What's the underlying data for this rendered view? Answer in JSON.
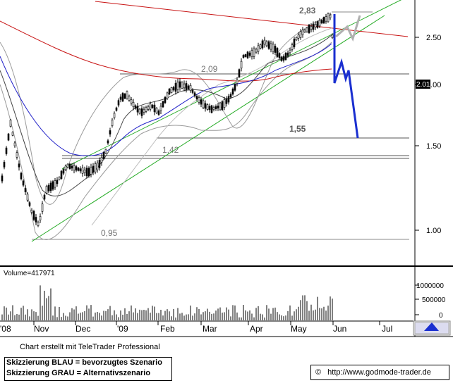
{
  "chart_data": {
    "type": "candlestick",
    "price_axis": {
      "ticks": [
        "2.50",
        "2.00",
        "1.50",
        "1.00"
      ],
      "ylim": [
        0.85,
        3.0
      ],
      "last_price": "2.01"
    },
    "time_axis": {
      "labels": [
        "'08",
        "Nov",
        "Dec",
        "'09",
        "Feb",
        "Mar",
        "Apr",
        "May",
        "Jun",
        "Jul"
      ]
    },
    "annotations": {
      "high": "2,83",
      "level_209": "2,09",
      "level_155": "1,55",
      "level_142": "1,42",
      "level_095": "0,95"
    },
    "volume": {
      "label": "Volume=417971",
      "ticks": [
        "1000000",
        "500000",
        "0"
      ]
    }
  },
  "footer": {
    "credit": "Chart erstellt mit TeleTrader Professional",
    "legend_blue": "Skizzierung BLAU = bevorzugtes Szenario",
    "legend_grey": "Skizzierung GRAU = Alternativszenario",
    "copyright_symbol": "©",
    "url": "http://www.godmode-trader.de"
  },
  "colors": {
    "scenario_blue": "#1a2fd0",
    "scenario_grey": "#b0b0b0",
    "trend_green": "#22aa22",
    "ma_red": "#c81414",
    "ma_blue": "#2020c8",
    "candle": "#000000"
  }
}
